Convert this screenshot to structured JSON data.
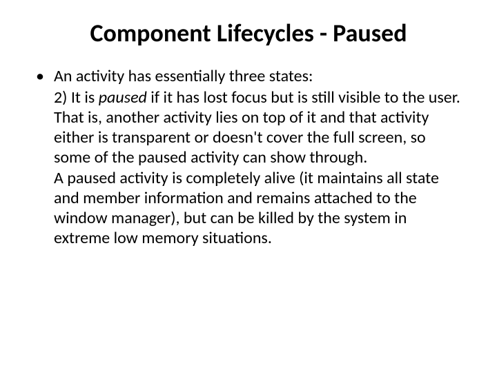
{
  "slide": {
    "title": "Component Lifecycles - Paused",
    "bullet": {
      "intro": "An activity has essentially three states:",
      "point_prefix_a": "2)  It is ",
      "point_italic": "paused",
      "point_rest_a": " if it has lost focus but is still visible to the user. That is, another activity lies on top of it and that activity either is transparent or doesn't cover the full screen, so some of the paused activity can show through.",
      "para2": "A paused activity is completely alive (it maintains all state and member information and remains attached to the window manager), but can be killed by the system in extreme low memory situations."
    }
  },
  "styling": {
    "background_color": "#ffffff",
    "text_color": "#000000",
    "title_fontsize": 36,
    "title_fontweight": 700,
    "body_fontsize": 24,
    "font_family": "Calibri",
    "slide_width": 720,
    "slide_height": 540
  }
}
